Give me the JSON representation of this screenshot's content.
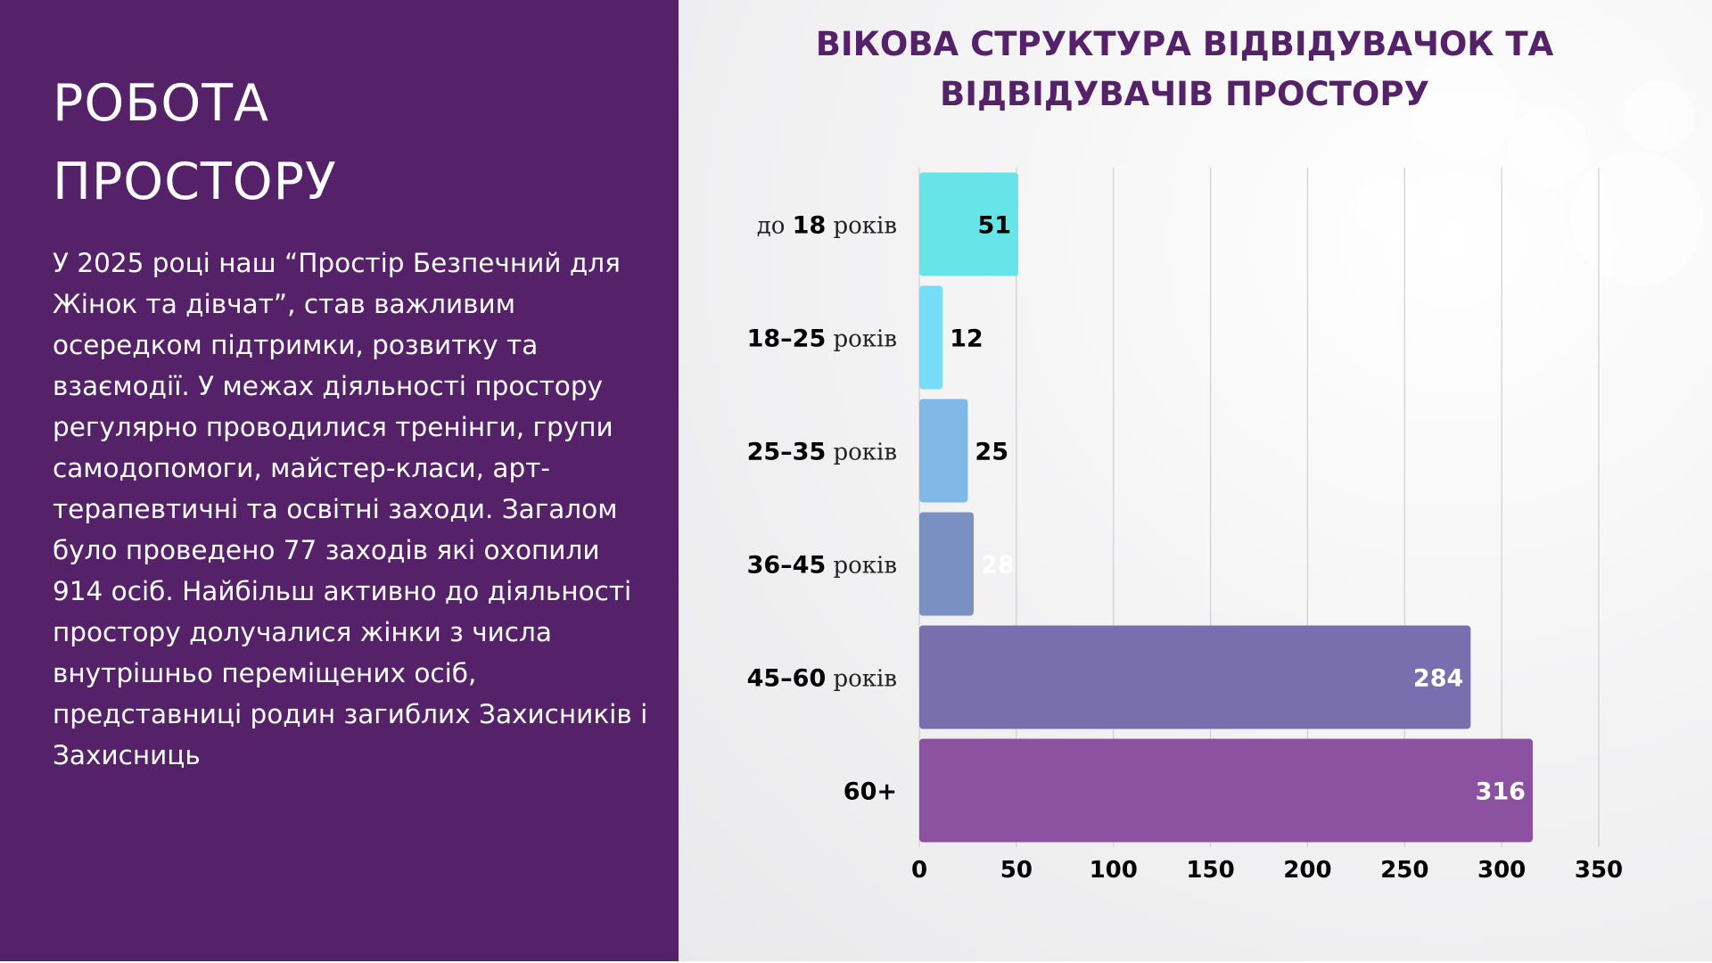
{
  "left_panel": {
    "heading": "РОБОТА\nПРОСТОРУ",
    "body": "У 2025 році наш “Простір Безпечний для Жінок та дівчат”, став важливим осередком підтримки, розвитку та взаємодії. У межах діяльності простору регулярно проводилися тренінги, групи самодопомоги, майстер-класи, арт-терапевтичні та освітні заходи. Загалом було проведено 77 заходів які охопили 914 осіб. Найбільш активно до діяльності простору долучалися жінки з числа внутрішньо переміщених осіб, представниці родин загиблих Захисників і Захисниць",
    "background_color": "#55226a"
  },
  "chart_data": {
    "type": "bar",
    "orientation": "horizontal",
    "title": "ВІКОВА СТРУКТУРА ВІДВІДУВАЧОК ТА\nВІДВІДУВАЧІВ ПРОСТОРУ",
    "categories": [
      {
        "prefix": "до",
        "number": "18",
        "suffix": "років"
      },
      {
        "prefix": "",
        "number": "18–25",
        "suffix": "років"
      },
      {
        "prefix": "",
        "number": "25–35",
        "suffix": "років"
      },
      {
        "prefix": "",
        "number": "36–45",
        "suffix": "років"
      },
      {
        "prefix": "",
        "number": "45–60",
        "suffix": "років"
      },
      {
        "prefix": "",
        "number": "60+",
        "suffix": ""
      }
    ],
    "values": [
      51,
      12,
      25,
      28,
      284,
      316
    ],
    "bar_colors": [
      "#67e4e8",
      "#76dcf7",
      "#80b9e6",
      "#7a8fc2",
      "#7a6fae",
      "#8c52a1"
    ],
    "value_label_colors": [
      "#000000",
      "#000000",
      "#000000",
      "#ffffff",
      "#ffffff",
      "#ffffff"
    ],
    "xlim": [
      0,
      350
    ],
    "x_ticks": [
      0,
      50,
      100,
      150,
      200,
      250,
      300,
      350
    ],
    "grid": "vertical",
    "title_color": "#55226a"
  }
}
